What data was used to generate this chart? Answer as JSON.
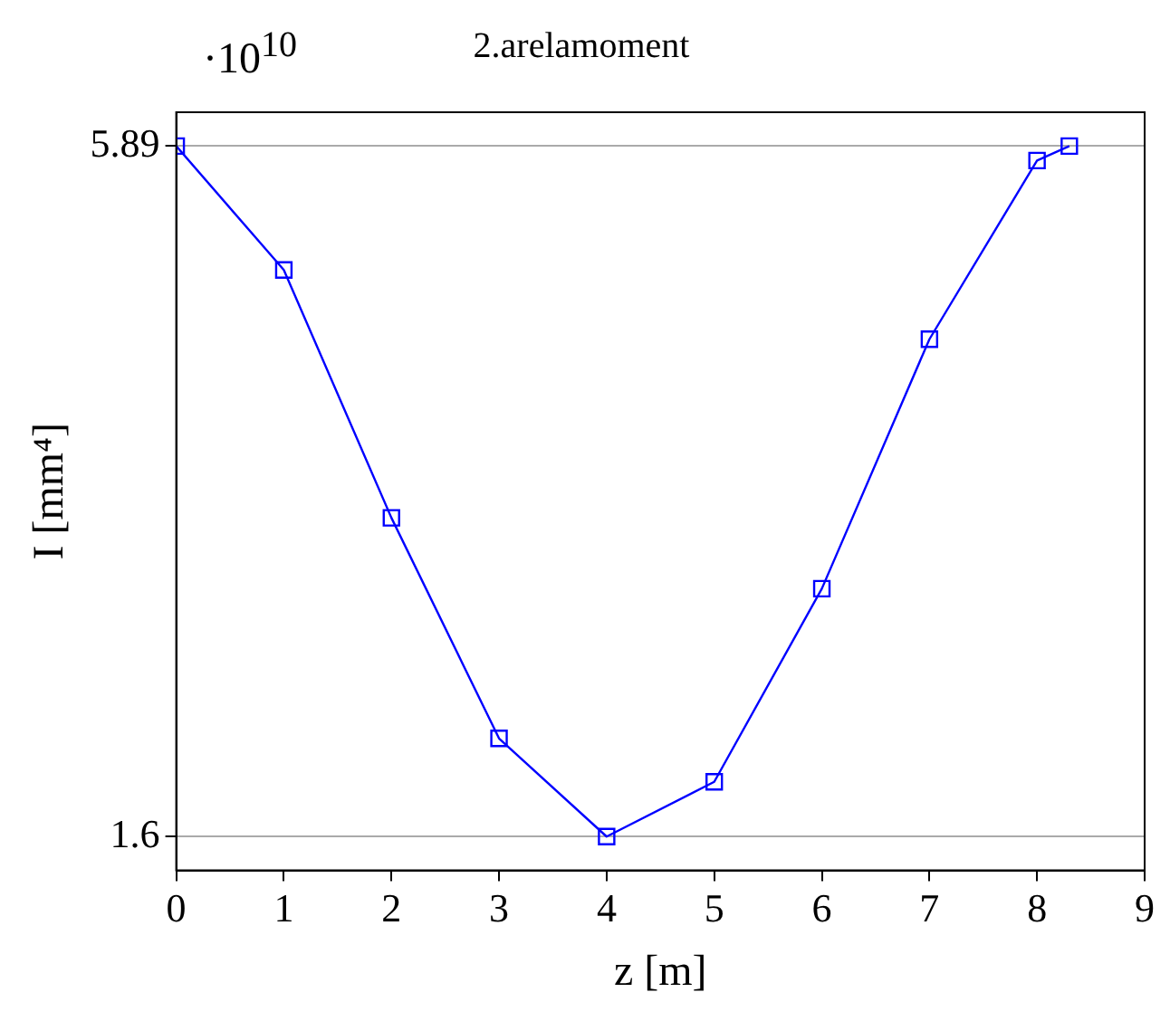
{
  "chart_data": {
    "type": "line",
    "title": "2.arelamoment",
    "xlabel": "z [m]",
    "ylabel": "I [mm⁴]",
    "annotations": [
      "·10$^{10}$"
    ],
    "x": [
      0,
      1,
      2,
      3,
      4,
      5,
      6,
      7,
      8,
      8.3
    ],
    "series": [
      {
        "color": "#0000ff",
        "values": [
          5.89,
          5.12,
          3.58,
          2.21,
          1.6,
          1.94,
          3.14,
          4.69,
          5.8,
          5.89
        ]
      }
    ],
    "xlim": [
      0,
      9
    ],
    "xticks": [
      0,
      1,
      2,
      3,
      4,
      5,
      6,
      7,
      8,
      9
    ],
    "ylim": [
      1.39,
      6.1
    ],
    "yticks": [
      1.6,
      5.89
    ],
    "grid": "y",
    "marker": "square",
    "line_style": "solid",
    "legend": false
  }
}
